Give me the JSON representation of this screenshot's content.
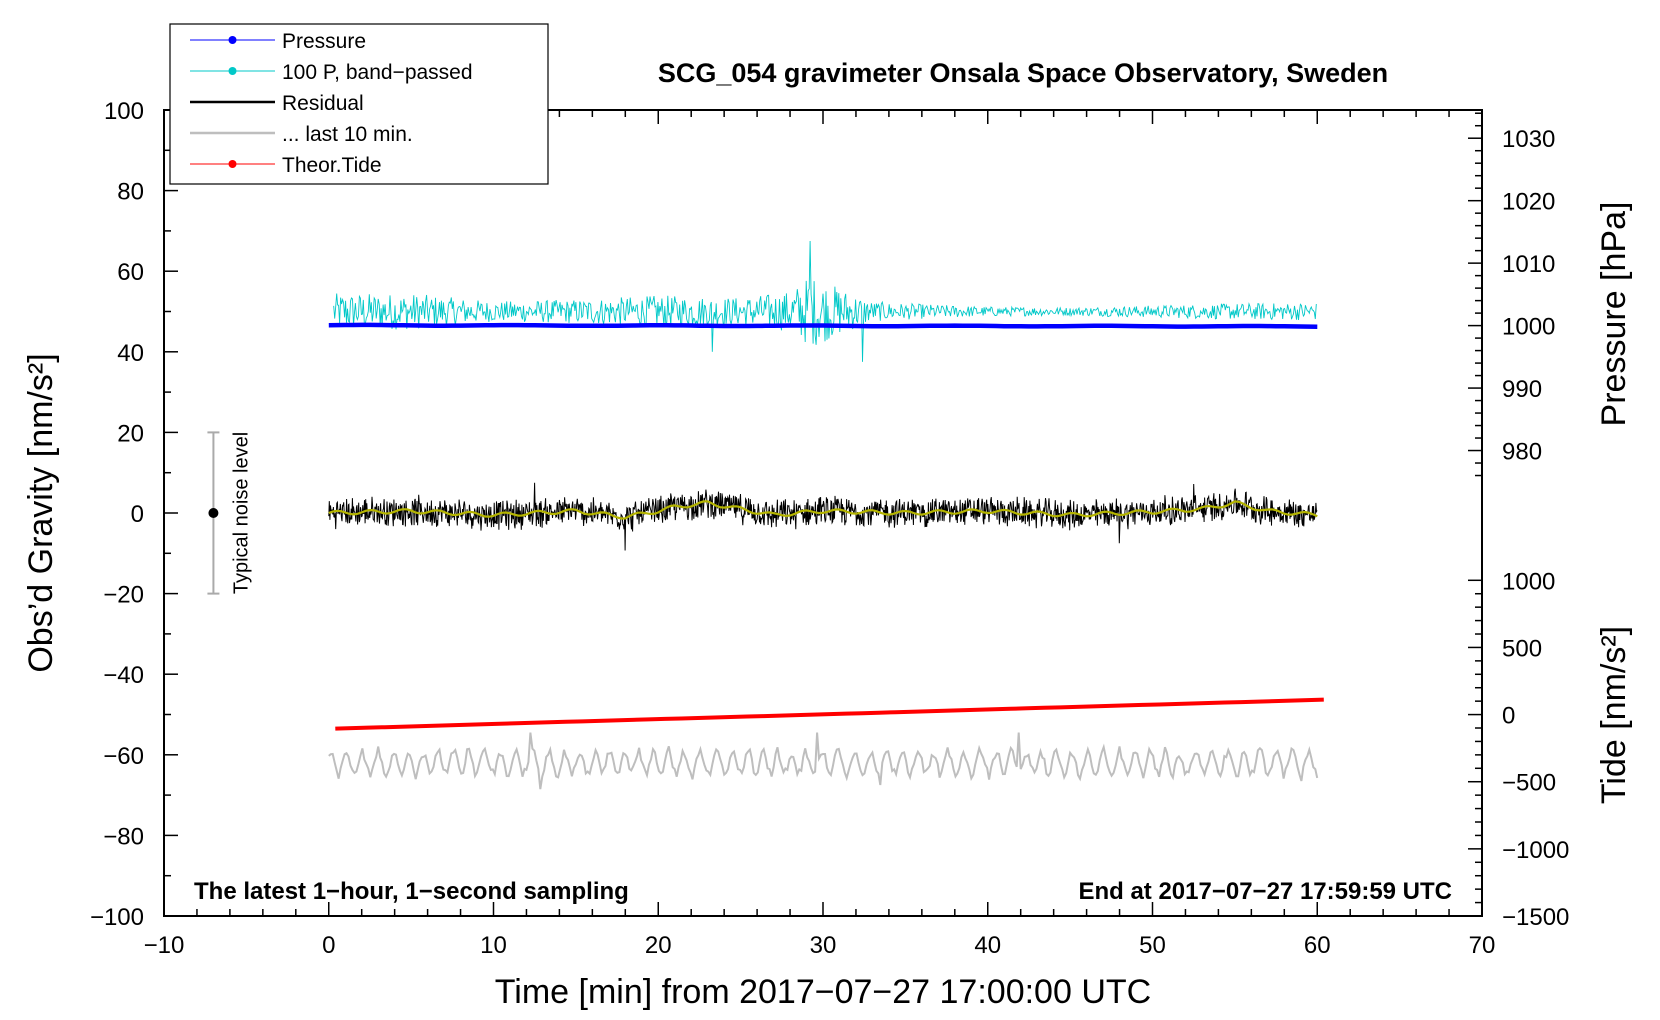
{
  "chart_data": {
    "type": "line",
    "title": "SCG_054 gravimeter Onsala Space Observatory, Sweden",
    "xlabel": "Time [min] from 2017−07−27 17:00:00 UTC",
    "ylabel_left": "Obs’d Gravity [nm/s²]",
    "ylabel_right_top": "Pressure [hPa]",
    "ylabel_right_bottom": "Tide [nm/s²]",
    "xlim": [
      -10,
      70
    ],
    "ylim": [
      -100,
      100
    ],
    "x_ticks": [
      "−10",
      "0",
      "10",
      "20",
      "30",
      "40",
      "50",
      "60",
      "70"
    ],
    "x_tick_values": [
      -10,
      0,
      10,
      20,
      30,
      40,
      50,
      60,
      70
    ],
    "y_ticks": [
      "−100",
      "−80",
      "−60",
      "−40",
      "−20",
      "0",
      "20",
      "40",
      "60",
      "80",
      "100"
    ],
    "y_tick_values": [
      -100,
      -80,
      -60,
      -40,
      -20,
      0,
      20,
      40,
      60,
      80,
      100
    ],
    "pressure_axis": {
      "ticks": [
        "980",
        "990",
        "1000",
        "1010",
        "1020",
        "1030"
      ],
      "tick_values": [
        980,
        990,
        1000,
        1010,
        1020,
        1030
      ],
      "map": {
        "hpa_a": 1000,
        "grav_a": 46.5,
        "hpa_b": 1030,
        "grav_b": 93.0
      }
    },
    "tide_axis": {
      "ticks": [
        "−1500",
        "−1000",
        "−500",
        "0",
        "500",
        "1000"
      ],
      "tick_values": [
        -1500,
        -1000,
        -500,
        0,
        500,
        1000
      ],
      "map": {
        "tide_a": -1500,
        "grav_a": -100,
        "tide_b": 1000,
        "grav_b": -16.7
      }
    },
    "legend": [
      {
        "label": "Pressure",
        "color": "#0000ff"
      },
      {
        "label": "100 P, band−passed",
        "color": "#00c8c8"
      },
      {
        "label": "Residual",
        "color": "#000000"
      },
      {
        "label": "... last 10 min.",
        "color": "#bebebe"
      },
      {
        "label": "Theor.Tide",
        "color": "#ff0000"
      }
    ],
    "series": [
      {
        "name": "Pressure",
        "color": "#0000ff",
        "x_range": [
          0,
          60
        ],
        "y_start": 46.6,
        "y_end": 46.3,
        "unit_note": "≈1000.1 hPa"
      },
      {
        "name": "100 P, band-passed",
        "color": "#00c8c8",
        "x_range": [
          0.3,
          60
        ],
        "baseline": 50,
        "envelope_x": [
          0,
          5,
          10,
          15,
          20,
          25,
          28,
          29.2,
          31,
          33,
          35,
          40,
          45,
          50,
          55,
          60
        ],
        "envelope_amp": [
          4.5,
          4.5,
          2.5,
          3,
          4,
          3.5,
          5,
          9,
          6,
          2.5,
          2,
          1.2,
          1,
          1.5,
          2,
          2.2
        ],
        "spikes": [
          {
            "x": 29.2,
            "y": 67.5
          },
          {
            "x": 32.4,
            "y": 37.5
          },
          {
            "x": 23.3,
            "y": 40
          }
        ]
      },
      {
        "name": "Residual",
        "color": "#000000",
        "x_range": [
          0,
          60
        ],
        "baseline": 0,
        "amplitude": 3.5,
        "spikes": [
          {
            "x": 18,
            "y": -9.3
          },
          {
            "x": 12.5,
            "y": 7.5
          },
          {
            "x": 52.5,
            "y": 7.2
          },
          {
            "x": 48,
            "y": -7.5
          }
        ]
      },
      {
        "name": "Residual (smoothed)",
        "color": "#b4b400",
        "x_range": [
          0,
          60
        ],
        "x": [
          0,
          5,
          10,
          15,
          18,
          20,
          21,
          23,
          25,
          27,
          30,
          35,
          40,
          45,
          50,
          53,
          55,
          57,
          60
        ],
        "y": [
          0,
          0.5,
          -0.5,
          0.5,
          -1,
          0.5,
          1.5,
          2.5,
          1,
          -0.5,
          0.5,
          0,
          0.5,
          -0.5,
          0.3,
          1,
          2.5,
          0.5,
          -0.5
        ]
      },
      {
        "name": "... last 10 min.",
        "color": "#bebebe",
        "x_range": [
          0,
          60
        ],
        "baseline": -62,
        "amplitude": 3,
        "peaks_up": [
          {
            "x": 12.2,
            "y": -54.5
          },
          {
            "x": 29.7,
            "y": -54.5
          },
          {
            "x": 41.9,
            "y": -54.5
          }
        ],
        "peaks_down": [
          {
            "x": 12.8,
            "y": -68.5
          },
          {
            "x": 33.5,
            "y": -67.5
          },
          {
            "x": 59,
            "y": -66.5
          }
        ]
      },
      {
        "name": "Theor.Tide",
        "color": "#ff0000",
        "x_range": [
          0.4,
          60.5
        ],
        "y_start": -53.5,
        "y_end": -46.3
      }
    ],
    "noise_bar": {
      "label": "Typical noise level",
      "x": -7,
      "y_min": -20,
      "y_max": 20,
      "center": 0
    },
    "annotations": {
      "bottom_left": "The latest 1−hour, 1−second sampling",
      "bottom_right": "End at 2017−07−27 17:59:59 UTC"
    },
    "grid": false,
    "legend_position": "top-left"
  }
}
